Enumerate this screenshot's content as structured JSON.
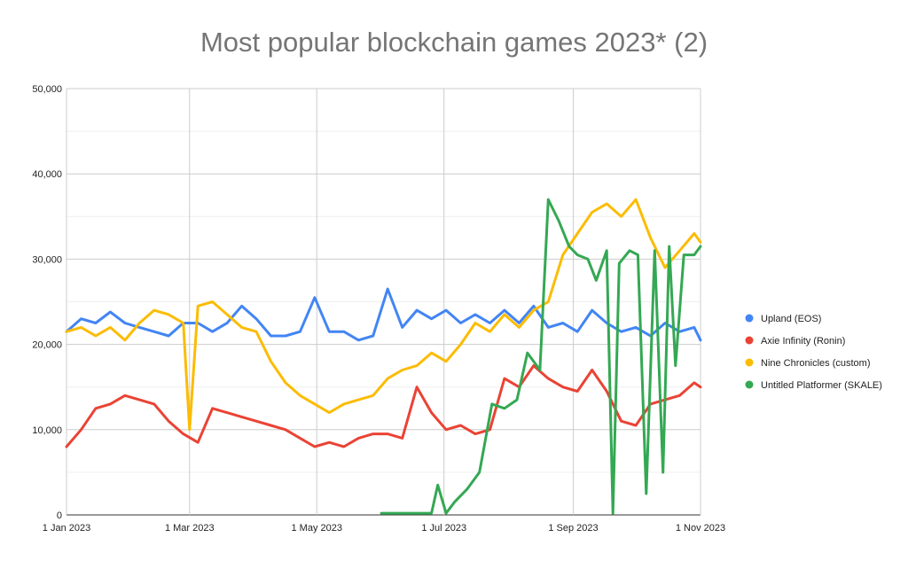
{
  "chart_data": {
    "type": "line",
    "title": "Most popular blockchain games 2023* (2)",
    "xlabel": "",
    "ylabel": "",
    "x_ticks": [
      "1 Jan 2023",
      "1 Mar 2023",
      "1 May 2023",
      "1 Jul 2023",
      "1 Sep 2023",
      "1 Nov 2023"
    ],
    "y_ticks": [
      "0",
      "10,000",
      "20,000",
      "30,000",
      "40,000",
      "50,000"
    ],
    "ylim": [
      0,
      50000
    ],
    "xlim": [
      "2023-01-01",
      "2023-11-01"
    ],
    "grid": true,
    "legend_position": "right",
    "series": [
      {
        "name": "Upland (EOS)",
        "color": "#4285f4",
        "points": [
          [
            "2023-01-01",
            21500
          ],
          [
            "2023-01-08",
            23000
          ],
          [
            "2023-01-15",
            22500
          ],
          [
            "2023-01-22",
            23800
          ],
          [
            "2023-01-29",
            22500
          ],
          [
            "2023-02-05",
            22000
          ],
          [
            "2023-02-12",
            21500
          ],
          [
            "2023-02-19",
            21000
          ],
          [
            "2023-02-26",
            22500
          ],
          [
            "2023-03-05",
            22500
          ],
          [
            "2023-03-12",
            21500
          ],
          [
            "2023-03-19",
            22500
          ],
          [
            "2023-03-26",
            24500
          ],
          [
            "2023-04-02",
            23000
          ],
          [
            "2023-04-09",
            21000
          ],
          [
            "2023-04-16",
            21000
          ],
          [
            "2023-04-23",
            21500
          ],
          [
            "2023-04-30",
            25500
          ],
          [
            "2023-05-07",
            21500
          ],
          [
            "2023-05-14",
            21500
          ],
          [
            "2023-05-21",
            20500
          ],
          [
            "2023-05-28",
            21000
          ],
          [
            "2023-06-04",
            26500
          ],
          [
            "2023-06-11",
            22000
          ],
          [
            "2023-06-18",
            24000
          ],
          [
            "2023-06-25",
            23000
          ],
          [
            "2023-07-02",
            24000
          ],
          [
            "2023-07-09",
            22500
          ],
          [
            "2023-07-16",
            23500
          ],
          [
            "2023-07-23",
            22500
          ],
          [
            "2023-07-30",
            24000
          ],
          [
            "2023-08-06",
            22500
          ],
          [
            "2023-08-13",
            24500
          ],
          [
            "2023-08-20",
            22000
          ],
          [
            "2023-08-27",
            22500
          ],
          [
            "2023-09-03",
            21500
          ],
          [
            "2023-09-10",
            24000
          ],
          [
            "2023-09-17",
            22500
          ],
          [
            "2023-09-24",
            21500
          ],
          [
            "2023-10-01",
            22000
          ],
          [
            "2023-10-08",
            21000
          ],
          [
            "2023-10-15",
            22500
          ],
          [
            "2023-10-22",
            21500
          ],
          [
            "2023-10-29",
            22000
          ],
          [
            "2023-11-01",
            20500
          ]
        ]
      },
      {
        "name": "Axie Infinity (Ronin)",
        "color": "#ea4335",
        "points": [
          [
            "2023-01-01",
            8000
          ],
          [
            "2023-01-08",
            10000
          ],
          [
            "2023-01-15",
            12500
          ],
          [
            "2023-01-22",
            13000
          ],
          [
            "2023-01-29",
            14000
          ],
          [
            "2023-02-05",
            13500
          ],
          [
            "2023-02-12",
            13000
          ],
          [
            "2023-02-19",
            11000
          ],
          [
            "2023-02-26",
            9500
          ],
          [
            "2023-03-05",
            8500
          ],
          [
            "2023-03-12",
            12500
          ],
          [
            "2023-03-19",
            12000
          ],
          [
            "2023-03-26",
            11500
          ],
          [
            "2023-04-02",
            11000
          ],
          [
            "2023-04-09",
            10500
          ],
          [
            "2023-04-16",
            10000
          ],
          [
            "2023-04-23",
            9000
          ],
          [
            "2023-04-30",
            8000
          ],
          [
            "2023-05-07",
            8500
          ],
          [
            "2023-05-14",
            8000
          ],
          [
            "2023-05-21",
            9000
          ],
          [
            "2023-05-28",
            9500
          ],
          [
            "2023-06-04",
            9500
          ],
          [
            "2023-06-11",
            9000
          ],
          [
            "2023-06-18",
            15000
          ],
          [
            "2023-06-25",
            12000
          ],
          [
            "2023-07-02",
            10000
          ],
          [
            "2023-07-09",
            10500
          ],
          [
            "2023-07-16",
            9500
          ],
          [
            "2023-07-23",
            10000
          ],
          [
            "2023-07-30",
            16000
          ],
          [
            "2023-08-06",
            15000
          ],
          [
            "2023-08-13",
            17500
          ],
          [
            "2023-08-20",
            16000
          ],
          [
            "2023-08-27",
            15000
          ],
          [
            "2023-09-03",
            14500
          ],
          [
            "2023-09-10",
            17000
          ],
          [
            "2023-09-17",
            14500
          ],
          [
            "2023-09-24",
            11000
          ],
          [
            "2023-10-01",
            10500
          ],
          [
            "2023-10-08",
            13000
          ],
          [
            "2023-10-15",
            13500
          ],
          [
            "2023-10-22",
            14000
          ],
          [
            "2023-10-29",
            15500
          ],
          [
            "2023-11-01",
            15000
          ]
        ]
      },
      {
        "name": "Nine Chronicles (custom)",
        "color": "#fbbc04",
        "points": [
          [
            "2023-01-01",
            21500
          ],
          [
            "2023-01-08",
            22000
          ],
          [
            "2023-01-15",
            21000
          ],
          [
            "2023-01-22",
            22000
          ],
          [
            "2023-01-29",
            20500
          ],
          [
            "2023-02-05",
            22500
          ],
          [
            "2023-02-12",
            24000
          ],
          [
            "2023-02-19",
            23500
          ],
          [
            "2023-02-26",
            22500
          ],
          [
            "2023-03-01",
            10000
          ],
          [
            "2023-03-05",
            24500
          ],
          [
            "2023-03-12",
            25000
          ],
          [
            "2023-03-19",
            23500
          ],
          [
            "2023-03-26",
            22000
          ],
          [
            "2023-04-02",
            21500
          ],
          [
            "2023-04-09",
            18000
          ],
          [
            "2023-04-16",
            15500
          ],
          [
            "2023-04-23",
            14000
          ],
          [
            "2023-04-30",
            13000
          ],
          [
            "2023-05-07",
            12000
          ],
          [
            "2023-05-14",
            13000
          ],
          [
            "2023-05-21",
            13500
          ],
          [
            "2023-05-28",
            14000
          ],
          [
            "2023-06-04",
            16000
          ],
          [
            "2023-06-11",
            17000
          ],
          [
            "2023-06-18",
            17500
          ],
          [
            "2023-06-25",
            19000
          ],
          [
            "2023-07-02",
            18000
          ],
          [
            "2023-07-09",
            20000
          ],
          [
            "2023-07-16",
            22500
          ],
          [
            "2023-07-23",
            21500
          ],
          [
            "2023-07-30",
            23500
          ],
          [
            "2023-08-06",
            22000
          ],
          [
            "2023-08-13",
            24000
          ],
          [
            "2023-08-20",
            25000
          ],
          [
            "2023-08-27",
            30500
          ],
          [
            "2023-09-03",
            33000
          ],
          [
            "2023-09-10",
            35500
          ],
          [
            "2023-09-17",
            36500
          ],
          [
            "2023-09-24",
            35000
          ],
          [
            "2023-10-01",
            37000
          ],
          [
            "2023-10-08",
            32500
          ],
          [
            "2023-10-15",
            29000
          ],
          [
            "2023-10-22",
            31000
          ],
          [
            "2023-10-29",
            33000
          ],
          [
            "2023-11-01",
            32000
          ]
        ]
      },
      {
        "name": "Untitled Platformer (SKALE)",
        "color": "#34a853",
        "points": [
          [
            "2023-06-01",
            200
          ],
          [
            "2023-06-25",
            200
          ],
          [
            "2023-06-28",
            3500
          ],
          [
            "2023-07-02",
            200
          ],
          [
            "2023-07-06",
            1500
          ],
          [
            "2023-07-12",
            3000
          ],
          [
            "2023-07-18",
            5000
          ],
          [
            "2023-07-24",
            13000
          ],
          [
            "2023-07-30",
            12500
          ],
          [
            "2023-08-05",
            13500
          ],
          [
            "2023-08-10",
            19000
          ],
          [
            "2023-08-16",
            17000
          ],
          [
            "2023-08-20",
            37000
          ],
          [
            "2023-08-25",
            34500
          ],
          [
            "2023-08-30",
            31500
          ],
          [
            "2023-09-03",
            30500
          ],
          [
            "2023-09-08",
            30000
          ],
          [
            "2023-09-12",
            27500
          ],
          [
            "2023-09-17",
            31000
          ],
          [
            "2023-09-20",
            200
          ],
          [
            "2023-09-23",
            29500
          ],
          [
            "2023-09-28",
            31000
          ],
          [
            "2023-10-02",
            30500
          ],
          [
            "2023-10-06",
            2500
          ],
          [
            "2023-10-10",
            31000
          ],
          [
            "2023-10-14",
            5000
          ],
          [
            "2023-10-17",
            31500
          ],
          [
            "2023-10-20",
            17500
          ],
          [
            "2023-10-24",
            30500
          ],
          [
            "2023-10-29",
            30500
          ],
          [
            "2023-11-01",
            31500
          ]
        ]
      }
    ]
  }
}
